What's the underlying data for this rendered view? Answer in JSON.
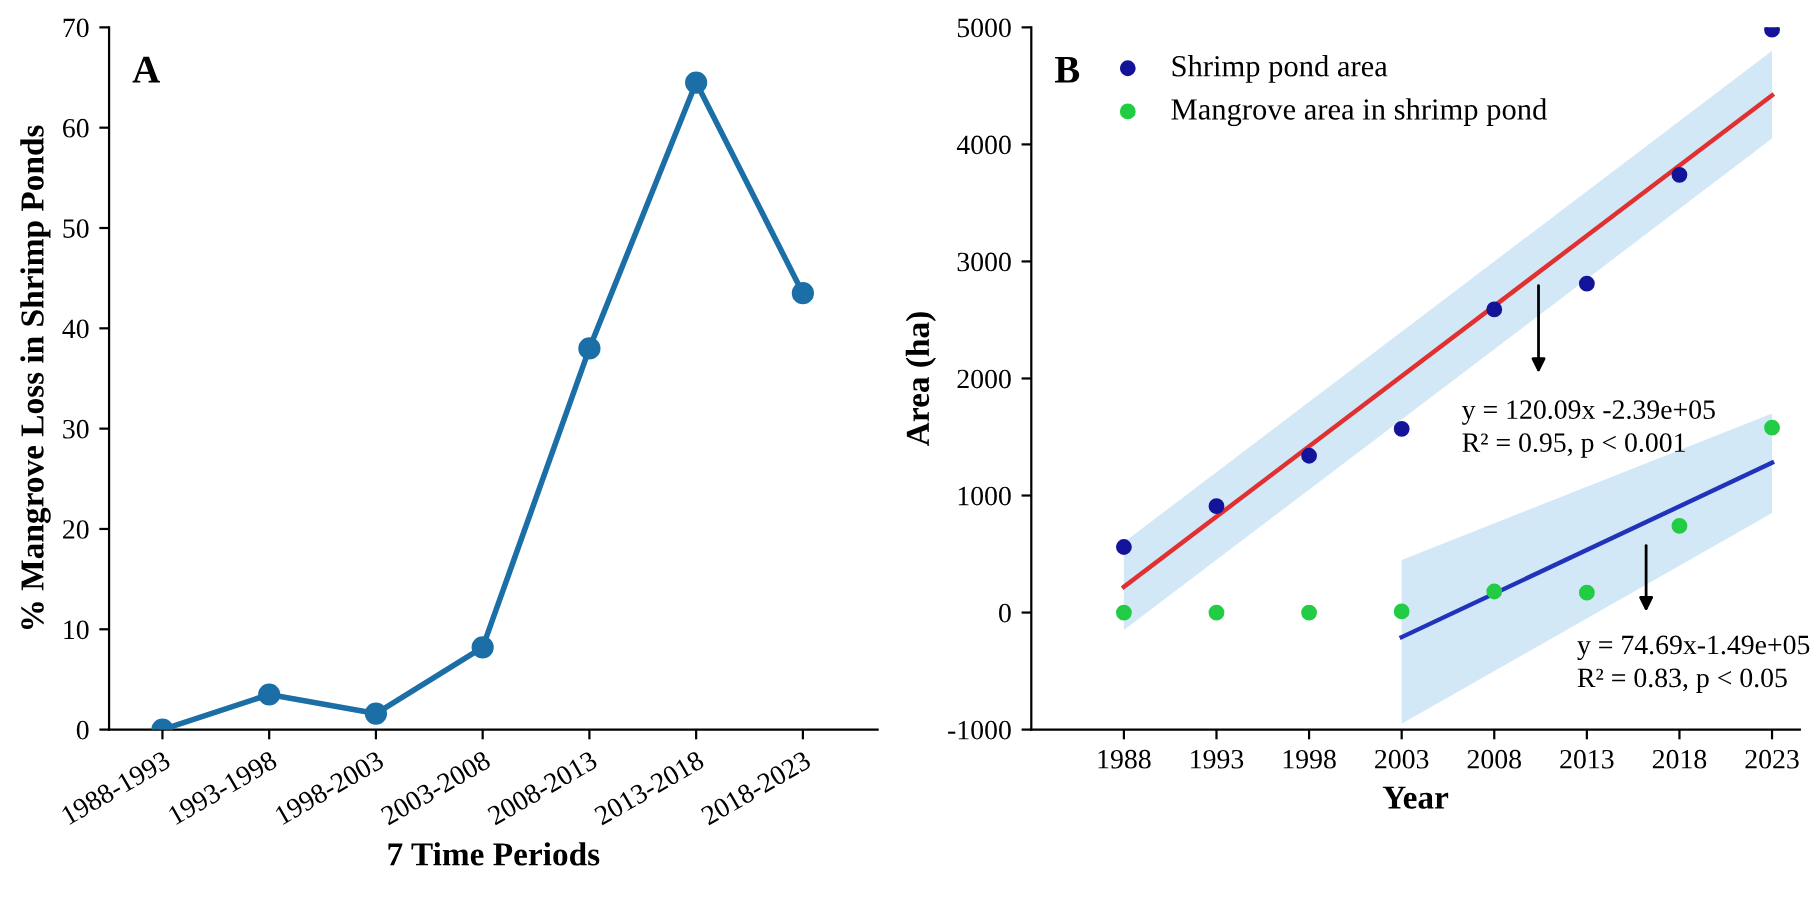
{
  "chart_data": [
    {
      "type": "line",
      "title": "A",
      "xlabel": "7 Time Periods",
      "ylabel": "% Mangrove Loss in Shrimp Ponds",
      "categories": [
        "1988-1993",
        "1993-1998",
        "1998-2003",
        "2003-2008",
        "2008-2013",
        "2013-2018",
        "2018-2023"
      ],
      "series": [
        {
          "color": "#1b6fa6",
          "values": [
            0,
            3.5,
            1.6,
            8.2,
            38,
            64.5,
            43.5
          ]
        }
      ],
      "ylim": [
        0,
        70
      ],
      "yticks": [
        0,
        10,
        20,
        30,
        40,
        50,
        60,
        70
      ],
      "marker": "circle",
      "line_style": "solid",
      "grid": false,
      "legend": false
    },
    {
      "type": "scatter",
      "title": "B",
      "xlabel": "Year",
      "ylabel": "Area (ha)",
      "x": [
        1988,
        1993,
        1998,
        2003,
        2008,
        2013,
        2018,
        2023
      ],
      "series": [
        {
          "name": "Shrimp pond area",
          "color": "#14149a",
          "values": [
            560,
            910,
            1340,
            1570,
            2590,
            2810,
            3740,
            4980
          ]
        },
        {
          "name": "Mangrove area in shrimp pond",
          "color": "#22cc44",
          "values": [
            0,
            0,
            0,
            10,
            180,
            170,
            740,
            1580
          ]
        },
        {
          "type": "line",
          "color": "#e03030",
          "x": [
            1988,
            2023
          ],
          "values": [
            220,
            4420
          ],
          "lower": [
            -150,
            4050
          ],
          "upper": [
            600,
            4800
          ]
        },
        {
          "type": "line",
          "color": "#2233bb",
          "x": [
            2003,
            2023
          ],
          "values": [
            -210,
            1280
          ],
          "lower": [
            -950,
            850
          ],
          "upper": [
            450,
            1700
          ]
        }
      ],
      "annotations": [
        "y = 120.09x -2.39e+05\nR² = 0.95, p < 0.001",
        "y = 74.69x-1.49e+05\nR² = 0.83, p < 0.05"
      ],
      "xlim": [
        1983,
        2024.5
      ],
      "xticks": [
        1988,
        1993,
        1998,
        2003,
        2008,
        2013,
        2018,
        2023
      ],
      "ylim": [
        -1000,
        5000
      ],
      "yticks": [
        -1000,
        0,
        1000,
        2000,
        3000,
        4000,
        5000
      ],
      "grid": false,
      "legend": "top left"
    }
  ]
}
